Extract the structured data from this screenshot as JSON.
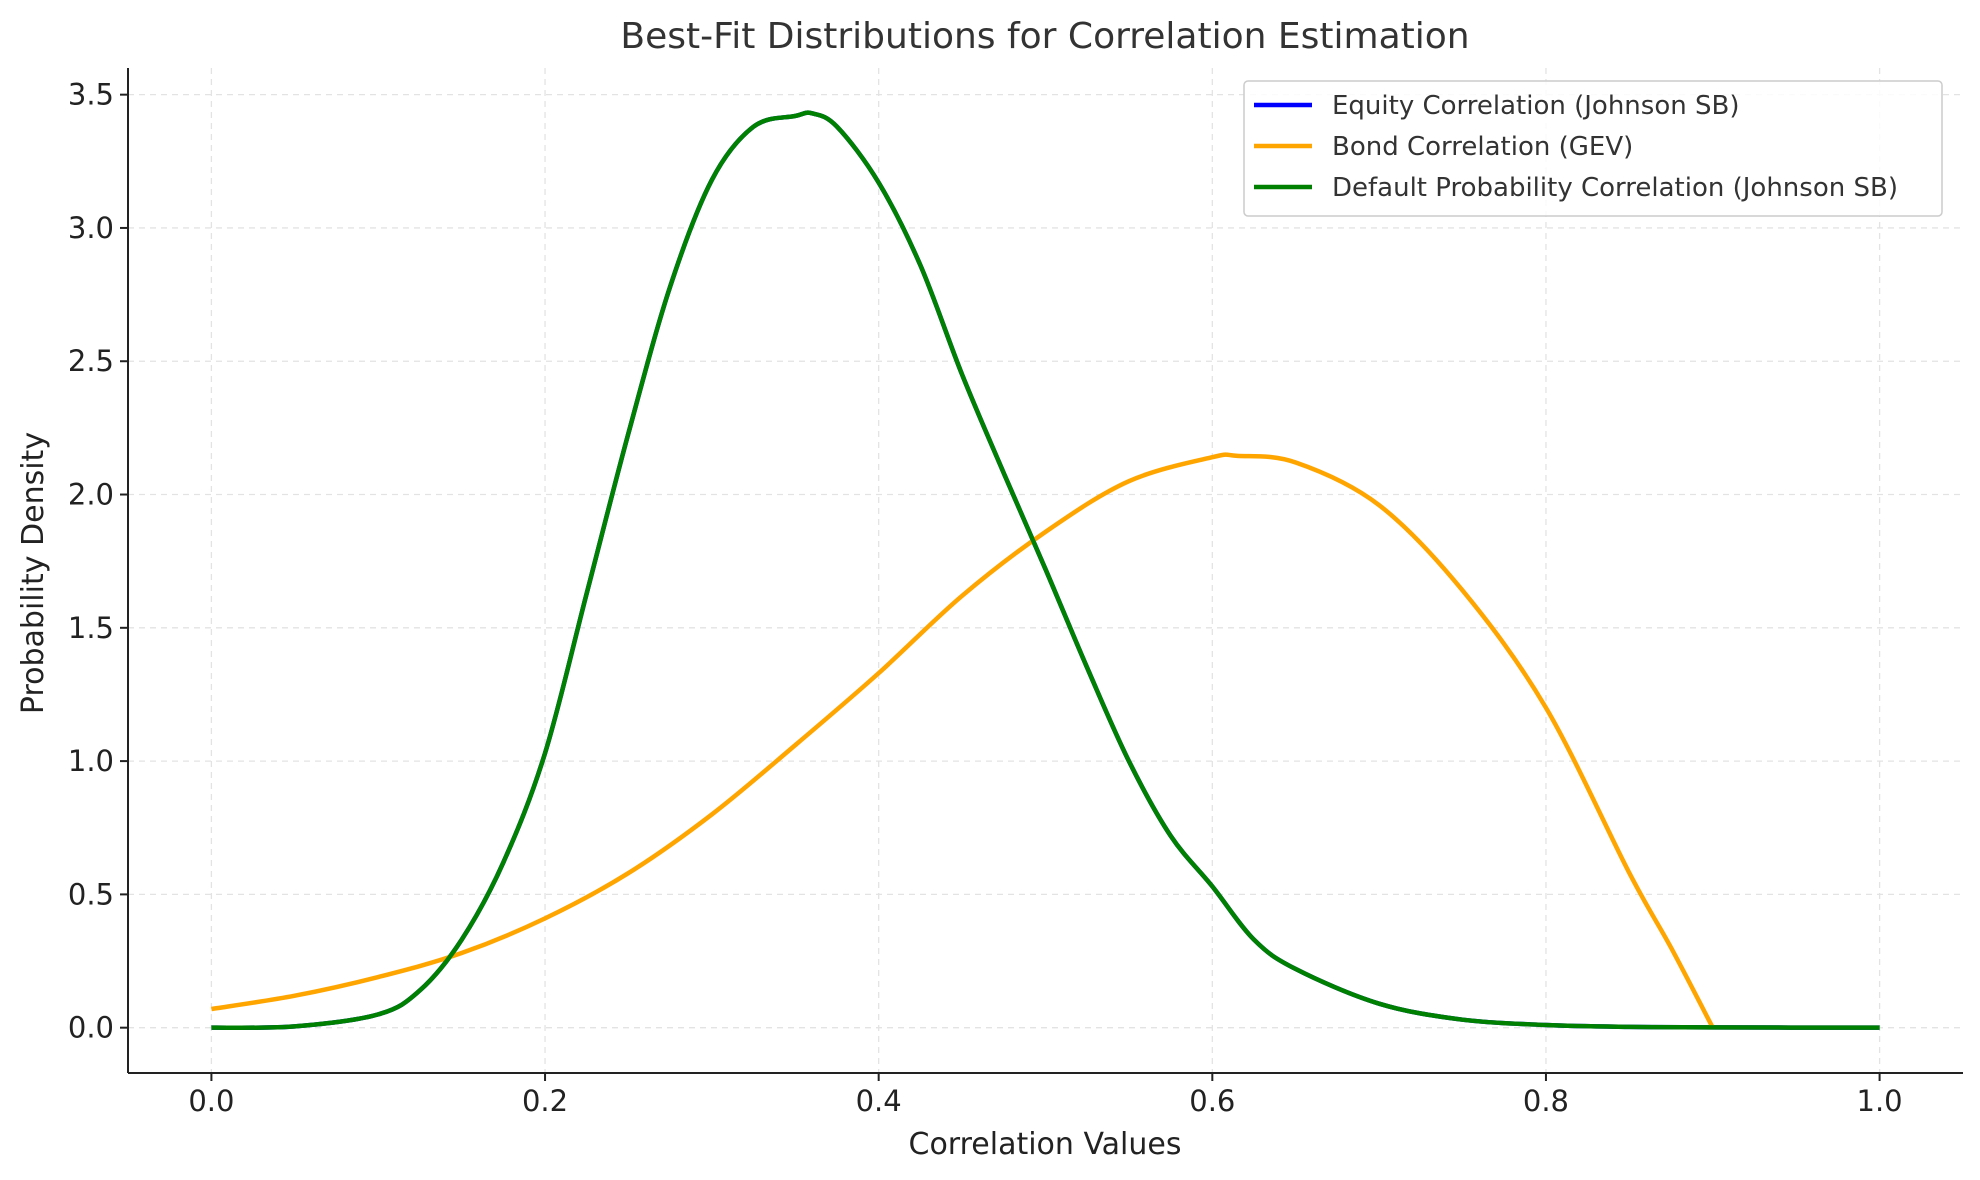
{
  "chart_data": {
    "type": "line",
    "title": "Best-Fit Distributions for Correlation Estimation",
    "xlabel": "Correlation Values",
    "ylabel": "Probability Density",
    "xlim": [
      -0.05,
      1.05
    ],
    "ylim": [
      -0.17,
      3.6
    ],
    "xticks": [
      0.0,
      0.2,
      0.4,
      0.6,
      0.8,
      1.0
    ],
    "xtick_labels": [
      "0.0",
      "0.2",
      "0.4",
      "0.6",
      "0.8",
      "1.0"
    ],
    "yticks": [
      0.0,
      0.5,
      1.0,
      1.5,
      2.0,
      2.5,
      3.0,
      3.5
    ],
    "ytick_labels": [
      "0.0",
      "0.5",
      "1.0",
      "1.5",
      "2.0",
      "2.5",
      "3.0",
      "3.5"
    ],
    "grid": true,
    "legend_position": "top-right",
    "series": [
      {
        "name": "Equity Correlation (Johnson SB)",
        "color": "#0000ff",
        "x": [
          0.0,
          0.05,
          0.1,
          0.125,
          0.15,
          0.175,
          0.2,
          0.225,
          0.25,
          0.275,
          0.3,
          0.325,
          0.35,
          0.36,
          0.375,
          0.4,
          0.425,
          0.45,
          0.475,
          0.5,
          0.525,
          0.55,
          0.575,
          0.6,
          0.625,
          0.65,
          0.7,
          0.75,
          0.8,
          0.85,
          0.9,
          1.0
        ],
        "y": [
          0.0,
          0.005,
          0.05,
          0.14,
          0.33,
          0.62,
          1.03,
          1.63,
          2.23,
          2.78,
          3.18,
          3.38,
          3.42,
          3.43,
          3.38,
          3.17,
          2.86,
          2.45,
          2.08,
          1.72,
          1.35,
          1.0,
          0.72,
          0.53,
          0.33,
          0.22,
          0.09,
          0.03,
          0.01,
          0.003,
          0.001,
          0.0
        ]
      },
      {
        "name": "Bond Correlation (GEV)",
        "color": "#ffa500",
        "x": [
          0.0,
          0.05,
          0.1,
          0.15,
          0.2,
          0.25,
          0.3,
          0.35,
          0.4,
          0.45,
          0.5,
          0.55,
          0.6,
          0.615,
          0.65,
          0.7,
          0.75,
          0.8,
          0.85,
          0.875,
          0.9
        ],
        "y": [
          0.07,
          0.12,
          0.19,
          0.28,
          0.41,
          0.58,
          0.8,
          1.06,
          1.33,
          1.62,
          1.86,
          2.05,
          2.14,
          2.145,
          2.12,
          1.96,
          1.64,
          1.2,
          0.58,
          0.3,
          0.0
        ]
      },
      {
        "name": "Default Probability Correlation (Johnson SB)",
        "color": "#008000",
        "x": [
          0.0,
          0.05,
          0.1,
          0.125,
          0.15,
          0.175,
          0.2,
          0.225,
          0.25,
          0.275,
          0.3,
          0.325,
          0.35,
          0.36,
          0.375,
          0.4,
          0.425,
          0.45,
          0.475,
          0.5,
          0.525,
          0.55,
          0.575,
          0.6,
          0.625,
          0.65,
          0.7,
          0.75,
          0.8,
          0.85,
          0.9,
          1.0
        ],
        "y": [
          0.0,
          0.005,
          0.05,
          0.14,
          0.33,
          0.62,
          1.03,
          1.63,
          2.23,
          2.78,
          3.18,
          3.38,
          3.42,
          3.43,
          3.38,
          3.17,
          2.86,
          2.45,
          2.08,
          1.72,
          1.35,
          1.0,
          0.72,
          0.53,
          0.33,
          0.22,
          0.09,
          0.03,
          0.01,
          0.003,
          0.001,
          0.0
        ]
      }
    ]
  }
}
